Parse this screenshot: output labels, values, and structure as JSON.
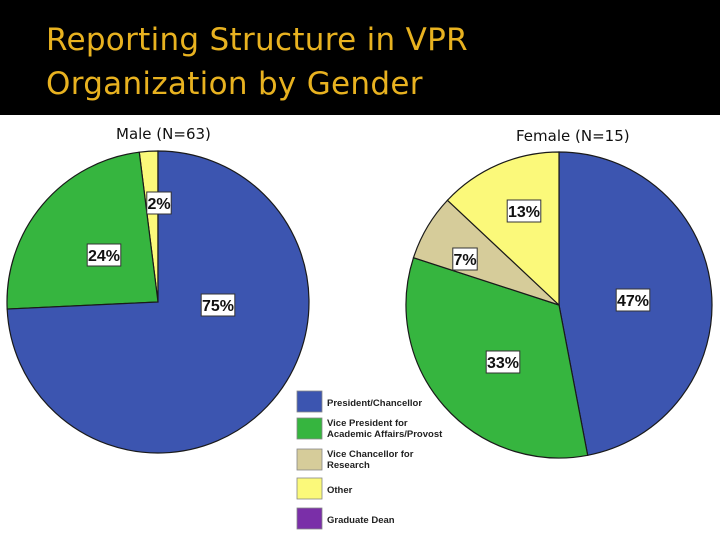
{
  "title_lines": [
    "Reporting Structure in VPR",
    "Organization by Gender"
  ],
  "colors": {
    "title": "#e8b220",
    "band": "#000000"
  },
  "chart_data": [
    {
      "type": "pie",
      "title": "Male (N=63)",
      "slices": [
        {
          "category": "President/Chancellor",
          "value": 75,
          "label": "75%"
        },
        {
          "category": "Vice President for Academic Affairs/Provost",
          "value": 24,
          "label": "24%"
        },
        {
          "category": "Other",
          "value": 2,
          "label": "2%"
        }
      ]
    },
    {
      "type": "pie",
      "title": "Female (N=15)",
      "slices": [
        {
          "category": "President/Chancellor",
          "value": 47,
          "label": "47%"
        },
        {
          "category": "Vice President for Academic Affairs/Provost",
          "value": 33,
          "label": "33%"
        },
        {
          "category": "Vice Chancellor for Research",
          "value": 7,
          "label": "7%"
        },
        {
          "category": "Other",
          "value": 13,
          "label": "13%"
        }
      ]
    }
  ],
  "legend": [
    {
      "lines": [
        "President/Chancellor"
      ],
      "color": "#3c55b0",
      "category": "President/Chancellor"
    },
    {
      "lines": [
        "Vice President for",
        "Academic Affairs/Provost"
      ],
      "color": "#36b53f",
      "category": "Vice President for Academic Affairs/Provost"
    },
    {
      "lines": [
        "Vice Chancellor for",
        "Research"
      ],
      "color": "#d6cc9a",
      "category": "Vice Chancellor for Research"
    },
    {
      "lines": [
        "Other"
      ],
      "color": "#fbf97a",
      "category": "Other"
    },
    {
      "lines": [
        "Graduate Dean"
      ],
      "color": "#7a2fa8",
      "category": "Graduate Dean"
    }
  ]
}
